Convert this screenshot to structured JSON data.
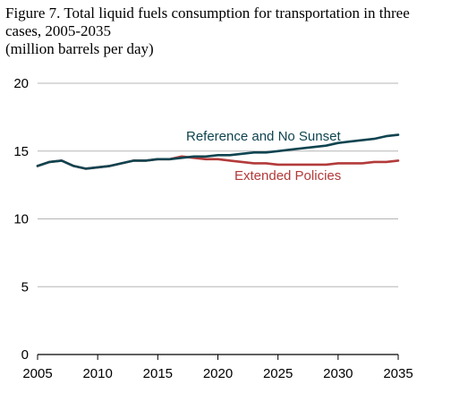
{
  "chart_data": {
    "type": "line",
    "title_lines": [
      "Figure 7. Total liquid fuels consumption for transportation in three",
      "cases, 2005-2035",
      "(million barrels per day)"
    ],
    "xlabel": "",
    "ylabel": "",
    "xlim": [
      2005,
      2035
    ],
    "ylim": [
      0,
      20
    ],
    "x_ticks": [
      2005,
      2010,
      2015,
      2020,
      2025,
      2030,
      2035
    ],
    "y_ticks": [
      0,
      5,
      10,
      15,
      20
    ],
    "grid": "horizontal",
    "legend": "inline labels",
    "series": [
      {
        "name": "Extended Policies",
        "color": "#b33a3a",
        "x": [
          2005,
          2006,
          2007,
          2008,
          2009,
          2010,
          2011,
          2012,
          2013,
          2014,
          2015,
          2016,
          2017,
          2018,
          2019,
          2020,
          2021,
          2022,
          2023,
          2024,
          2025,
          2026,
          2027,
          2028,
          2029,
          2030,
          2031,
          2032,
          2033,
          2034,
          2035
        ],
        "values": [
          13.9,
          14.2,
          14.3,
          13.9,
          13.7,
          13.8,
          13.9,
          14.1,
          14.3,
          14.3,
          14.4,
          14.4,
          14.6,
          14.5,
          14.4,
          14.4,
          14.3,
          14.2,
          14.1,
          14.1,
          14.0,
          14.0,
          14.0,
          14.0,
          14.0,
          14.1,
          14.1,
          14.1,
          14.2,
          14.2,
          14.3
        ]
      },
      {
        "name": "Reference and No Sunset",
        "color": "#0f4450",
        "x": [
          2005,
          2006,
          2007,
          2008,
          2009,
          2010,
          2011,
          2012,
          2013,
          2014,
          2015,
          2016,
          2017,
          2018,
          2019,
          2020,
          2021,
          2022,
          2023,
          2024,
          2025,
          2026,
          2027,
          2028,
          2029,
          2030,
          2031,
          2032,
          2033,
          2034,
          2035
        ],
        "values": [
          13.9,
          14.2,
          14.3,
          13.9,
          13.7,
          13.8,
          13.9,
          14.1,
          14.3,
          14.3,
          14.4,
          14.4,
          14.5,
          14.6,
          14.6,
          14.7,
          14.7,
          14.8,
          14.9,
          14.9,
          15.0,
          15.1,
          15.2,
          15.3,
          15.4,
          15.6,
          15.7,
          15.8,
          15.9,
          16.1,
          16.2
        ]
      }
    ],
    "annotations": [
      {
        "text": "Reference and No Sunset",
        "series": "Reference and No Sunset",
        "color": "#0f4450"
      },
      {
        "text": "Extended Policies",
        "series": "Extended Policies",
        "color": "#b33a3a"
      }
    ]
  }
}
